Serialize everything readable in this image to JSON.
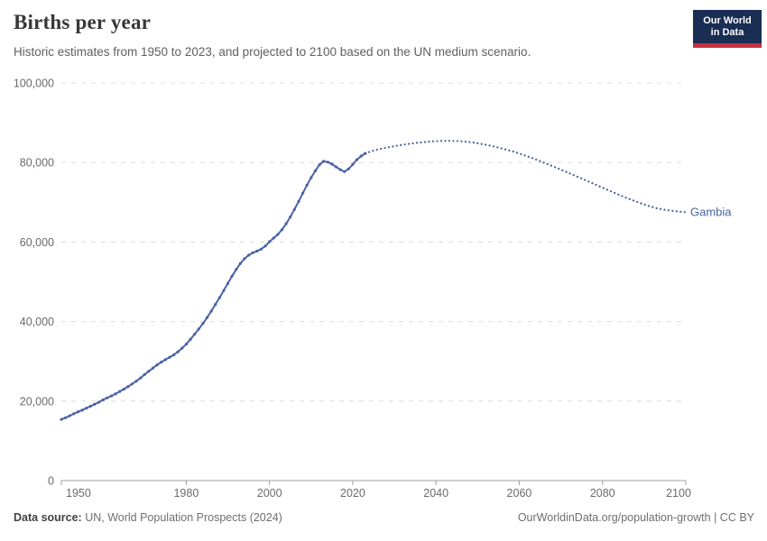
{
  "header": {
    "title": "Births per year",
    "subtitle": "Historic estimates from 1950 to 2023, and projected to 2100 based on the UN medium scenario."
  },
  "logo": {
    "line1": "Our World",
    "line2": "in Data",
    "bg_color": "#1A2E54",
    "accent_color": "#C5303F"
  },
  "chart_data": {
    "type": "line",
    "title": "Births per year",
    "entity_label": "Gambia",
    "color": "#4A63A4",
    "grid": "dashed-horizontal",
    "xlim": [
      1950,
      2100
    ],
    "ylim": [
      0,
      100000
    ],
    "x_ticks": [
      1950,
      1980,
      2000,
      2020,
      2040,
      2060,
      2080,
      2100
    ],
    "x_tick_labels": [
      "1950",
      "1980",
      "2000",
      "2020",
      "2040",
      "2060",
      "2080",
      "2100"
    ],
    "y_ticks": [
      0,
      20000,
      40000,
      60000,
      80000,
      100000
    ],
    "y_tick_labels": [
      "0",
      "20,000",
      "40,000",
      "60,000",
      "80,000",
      "100,000"
    ],
    "series": [
      {
        "name": "historic-estimates",
        "style": "solid-with-markers",
        "points": [
          [
            1950,
            15400
          ],
          [
            1951,
            15800
          ],
          [
            1952,
            16300
          ],
          [
            1953,
            16800
          ],
          [
            1954,
            17300
          ],
          [
            1955,
            17700
          ],
          [
            1956,
            18200
          ],
          [
            1957,
            18700
          ],
          [
            1958,
            19200
          ],
          [
            1959,
            19700
          ],
          [
            1960,
            20300
          ],
          [
            1961,
            20800
          ],
          [
            1962,
            21300
          ],
          [
            1963,
            21800
          ],
          [
            1964,
            22400
          ],
          [
            1965,
            23000
          ],
          [
            1966,
            23600
          ],
          [
            1967,
            24300
          ],
          [
            1968,
            25000
          ],
          [
            1969,
            25800
          ],
          [
            1970,
            26700
          ],
          [
            1971,
            27500
          ],
          [
            1972,
            28300
          ],
          [
            1973,
            29100
          ],
          [
            1974,
            29800
          ],
          [
            1975,
            30400
          ],
          [
            1976,
            31000
          ],
          [
            1977,
            31600
          ],
          [
            1978,
            32400
          ],
          [
            1979,
            33300
          ],
          [
            1980,
            34300
          ],
          [
            1981,
            35500
          ],
          [
            1982,
            36800
          ],
          [
            1983,
            38100
          ],
          [
            1984,
            39500
          ],
          [
            1985,
            41000
          ],
          [
            1986,
            42600
          ],
          [
            1987,
            44300
          ],
          [
            1988,
            46000
          ],
          [
            1989,
            47800
          ],
          [
            1990,
            49600
          ],
          [
            1991,
            51400
          ],
          [
            1992,
            53100
          ],
          [
            1993,
            54600
          ],
          [
            1994,
            55800
          ],
          [
            1995,
            56700
          ],
          [
            1996,
            57300
          ],
          [
            1997,
            57700
          ],
          [
            1998,
            58200
          ],
          [
            1999,
            59000
          ],
          [
            2000,
            60100
          ],
          [
            2001,
            61000
          ],
          [
            2002,
            61900
          ],
          [
            2003,
            63100
          ],
          [
            2004,
            64600
          ],
          [
            2005,
            66300
          ],
          [
            2006,
            68200
          ],
          [
            2007,
            70200
          ],
          [
            2008,
            72300
          ],
          [
            2009,
            74300
          ],
          [
            2010,
            76200
          ],
          [
            2011,
            77900
          ],
          [
            2012,
            79400
          ],
          [
            2013,
            80300
          ],
          [
            2014,
            80100
          ],
          [
            2015,
            79600
          ],
          [
            2016,
            78900
          ],
          [
            2017,
            78200
          ],
          [
            2018,
            77700
          ],
          [
            2019,
            78400
          ],
          [
            2020,
            79500
          ],
          [
            2021,
            80700
          ],
          [
            2022,
            81600
          ],
          [
            2023,
            82300
          ]
        ]
      },
      {
        "name": "un-medium-projection",
        "style": "dotted",
        "points": [
          [
            2023,
            82300
          ],
          [
            2025,
            83000
          ],
          [
            2027,
            83500
          ],
          [
            2029,
            83900
          ],
          [
            2031,
            84300
          ],
          [
            2033,
            84600
          ],
          [
            2035,
            84900
          ],
          [
            2037,
            85100
          ],
          [
            2039,
            85300
          ],
          [
            2041,
            85400
          ],
          [
            2043,
            85450
          ],
          [
            2045,
            85400
          ],
          [
            2047,
            85250
          ],
          [
            2049,
            85000
          ],
          [
            2051,
            84650
          ],
          [
            2053,
            84250
          ],
          [
            2055,
            83750
          ],
          [
            2057,
            83200
          ],
          [
            2059,
            82600
          ],
          [
            2061,
            81900
          ],
          [
            2063,
            81150
          ],
          [
            2065,
            80350
          ],
          [
            2067,
            79500
          ],
          [
            2069,
            78650
          ],
          [
            2071,
            77750
          ],
          [
            2073,
            76850
          ],
          [
            2075,
            75950
          ],
          [
            2077,
            75050
          ],
          [
            2079,
            74100
          ],
          [
            2081,
            73200
          ],
          [
            2083,
            72300
          ],
          [
            2085,
            71400
          ],
          [
            2087,
            70600
          ],
          [
            2089,
            69800
          ],
          [
            2091,
            69100
          ],
          [
            2093,
            68500
          ],
          [
            2095,
            68100
          ],
          [
            2097,
            67800
          ],
          [
            2099,
            67600
          ],
          [
            2100,
            67500
          ]
        ]
      }
    ]
  },
  "footer": {
    "source_label": "Data source:",
    "source_value": " UN, World Population Prospects (2024)",
    "attribution": "OurWorldinData.org/population-growth | CC BY"
  }
}
